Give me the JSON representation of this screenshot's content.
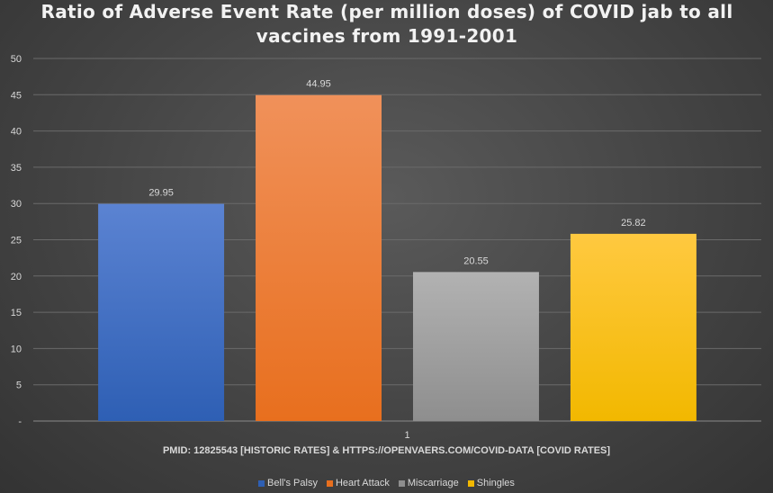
{
  "chart_data": {
    "type": "bar",
    "title": "Ratio of Adverse Event Rate (per million doses) of COVID jab to all\nvaccines from 1991-2001",
    "xlabel": "PMID: 12825543 [HISTORIC RATES] & HTTPS://OPENVAERS.COM/COVID-DATA [COVID RATES]",
    "ylabel": "",
    "categories": [
      "1"
    ],
    "series": [
      {
        "name": "Bell's Palsy",
        "values": [
          29.95
        ],
        "label": "29.95",
        "color_top": "#5b83d2",
        "color_bottom": "#2e5fb4"
      },
      {
        "name": "Heart Attack",
        "values": [
          44.95
        ],
        "label": "44.95",
        "color_top": "#f0915a",
        "color_bottom": "#e86f1e"
      },
      {
        "name": "Miscarriage",
        "values": [
          20.55
        ],
        "label": "20.55",
        "color_top": "#b2b2b2",
        "color_bottom": "#8e8e8e"
      },
      {
        "name": "Shingles",
        "values": [
          25.82
        ],
        "label": "25.82",
        "color_top": "#ffc940",
        "color_bottom": "#f2b800"
      }
    ],
    "ylim": [
      0,
      50
    ],
    "yticks": [
      {
        "value": 0,
        "label": "-"
      },
      {
        "value": 5,
        "label": "5"
      },
      {
        "value": 10,
        "label": "10"
      },
      {
        "value": 15,
        "label": "15"
      },
      {
        "value": 20,
        "label": "20"
      },
      {
        "value": 25,
        "label": "25"
      },
      {
        "value": 30,
        "label": "30"
      },
      {
        "value": 35,
        "label": "35"
      },
      {
        "value": 40,
        "label": "40"
      },
      {
        "value": 45,
        "label": "45"
      },
      {
        "value": 50,
        "label": "50"
      }
    ],
    "grid": true,
    "legend": "bottom-center"
  }
}
